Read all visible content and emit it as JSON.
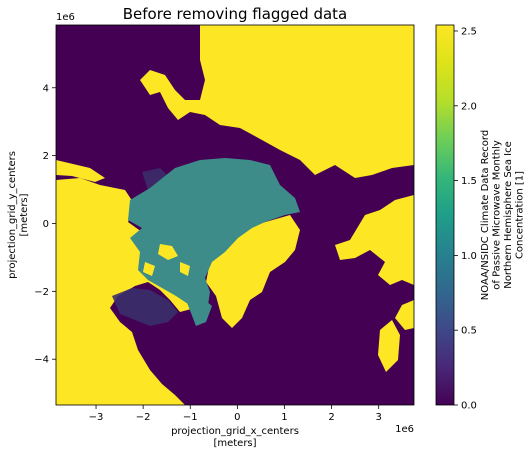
{
  "chart_data": {
    "type": "heatmap",
    "title": "Before removing flagged data",
    "xlabel_line1": "projection_grid_x_centers",
    "xlabel_line2": "[meters]",
    "ylabel_line1": "projection_grid_y_centers",
    "ylabel_line2": "[meters]",
    "x_offset_label": "1e6",
    "y_offset_label": "1e6",
    "xlim": [
      -3.85,
      3.75
    ],
    "ylim": [
      -5.35,
      5.85
    ],
    "xticks": [
      -3,
      -2,
      -1,
      0,
      1,
      2,
      3
    ],
    "yticks": [
      -4,
      -2,
      0,
      2,
      4
    ],
    "colorbar": {
      "range": [
        0.0,
        2.54
      ],
      "ticks": [
        "0.0",
        "0.5",
        "1.0",
        "1.5",
        "2.0",
        "2.5"
      ],
      "tick_values": [
        0.0,
        0.5,
        1.0,
        1.5,
        2.0,
        2.5
      ],
      "label_lines": [
        "NOAA/NSIDC Climate Data Record",
        "of Passive Microwave Monthly",
        "Northern Hemisphere Sea Ice",
        "Concentration [1]"
      ],
      "colormap": "viridis"
    },
    "regions": {
      "ocean_value": 0.0,
      "sea_ice_value": 0.97,
      "land_flag_value": 2.54
    },
    "colors": {
      "low": "#440154",
      "mid": "#2a788e",
      "ice": "#3e8c8a",
      "high": "#fde725",
      "shadow": "#3b2f6a"
    }
  }
}
